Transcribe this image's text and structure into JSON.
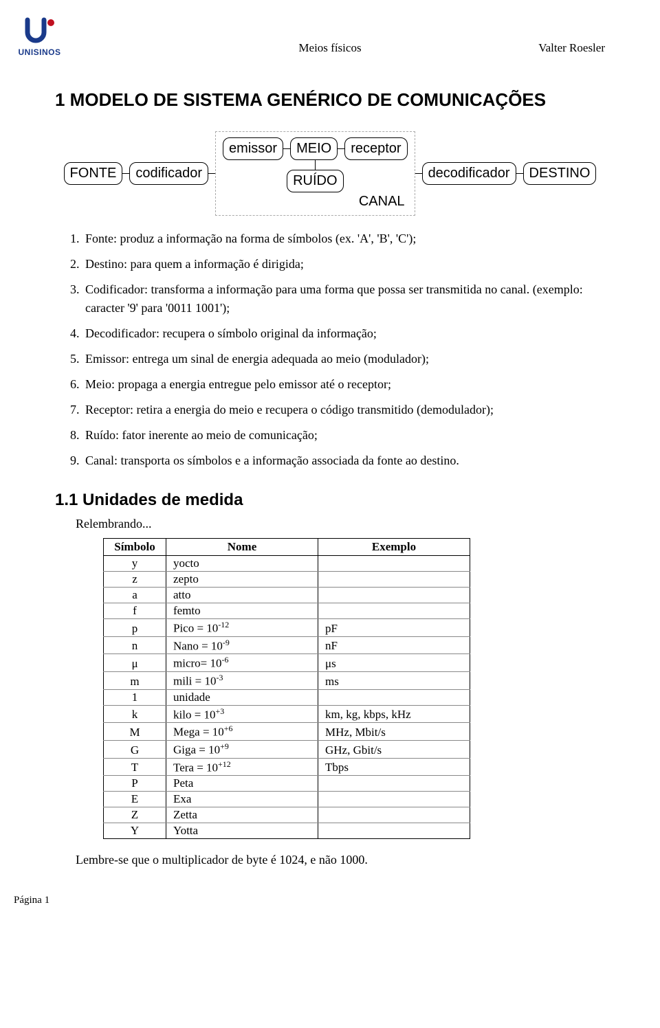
{
  "header": {
    "center": "Meios físicos",
    "right": "Valter Roesler",
    "logo_text": "UNISINOS"
  },
  "section_title": "1  MODELO DE SISTEMA GENÉRICO DE COMUNICAÇÕES",
  "diagram": {
    "nodes": {
      "fonte": "FONTE",
      "codificador": "codificador",
      "emissor": "emissor",
      "meio": "MEIO",
      "receptor": "receptor",
      "decodificador": "decodificador",
      "destino": "DESTINO",
      "ruido": "RUÍDO"
    },
    "canal_label": "CANAL"
  },
  "list_items": [
    "Fonte: produz a informação na forma de símbolos (ex. 'A', 'B', 'C');",
    "Destino: para quem a informação é dirigida;",
    "Codificador: transforma a informação para uma forma que possa ser transmitida no canal. (exemplo: caracter '9' para '0011 1001');",
    "Decodificador: recupera o símbolo original da informação;",
    "Emissor: entrega um sinal de energia adequada ao meio (modulador);",
    "Meio: propaga a energia entregue pelo emissor até o receptor;",
    "Receptor: retira a energia do meio e recupera o código transmitido (demodulador);",
    "Ruído: fator inerente ao meio de comunicação;",
    "Canal: transporta os símbolos e a informação associada da fonte ao destino."
  ],
  "subsection_title": "1.1 Unidades de medida",
  "relembrando": "Relembrando...",
  "table": {
    "headers": {
      "simbolo": "Símbolo",
      "nome": "Nome",
      "exemplo": "Exemplo"
    },
    "rows": [
      {
        "sym": "y",
        "nome_plain": "yocto",
        "ex": ""
      },
      {
        "sym": "z",
        "nome_plain": "zepto",
        "ex": ""
      },
      {
        "sym": "a",
        "nome_plain": "atto",
        "ex": ""
      },
      {
        "sym": "f",
        "nome_plain": "femto",
        "ex": ""
      },
      {
        "sym": "p",
        "nome_pre": "Pico = 10",
        "nome_sup": "-12",
        "ex": "pF"
      },
      {
        "sym": "n",
        "nome_pre": "Nano = 10",
        "nome_sup": "-9",
        "ex": "nF"
      },
      {
        "sym": "μ",
        "nome_pre": "micro= 10",
        "nome_sup": "-6",
        "ex": "μs"
      },
      {
        "sym": "m",
        "nome_pre": "mili = 10",
        "nome_sup": "-3",
        "ex": "ms"
      },
      {
        "sym": "1",
        "nome_plain": "unidade",
        "ex": ""
      },
      {
        "sym": "k",
        "nome_pre": "kilo = 10",
        "nome_sup": "+3",
        "ex": "km, kg, kbps, kHz"
      },
      {
        "sym": "M",
        "nome_pre": "Mega = 10",
        "nome_sup": "+6",
        "ex": "MHz, Mbit/s"
      },
      {
        "sym": "G",
        "nome_pre": "Giga = 10",
        "nome_sup": "+9",
        "ex": "GHz, Gbit/s"
      },
      {
        "sym": "T",
        "nome_pre": "Tera = 10",
        "nome_sup": "+12",
        "ex": "Tbps"
      },
      {
        "sym": "P",
        "nome_plain": "Peta",
        "ex": ""
      },
      {
        "sym": "E",
        "nome_plain": "Exa",
        "ex": ""
      },
      {
        "sym": "Z",
        "nome_plain": "Zetta",
        "ex": ""
      },
      {
        "sym": "Y",
        "nome_plain": "Yotta",
        "ex": ""
      }
    ]
  },
  "note": "Lembre-se que o multiplicador de byte é 1024, e não 1000.",
  "footer": "Página 1"
}
